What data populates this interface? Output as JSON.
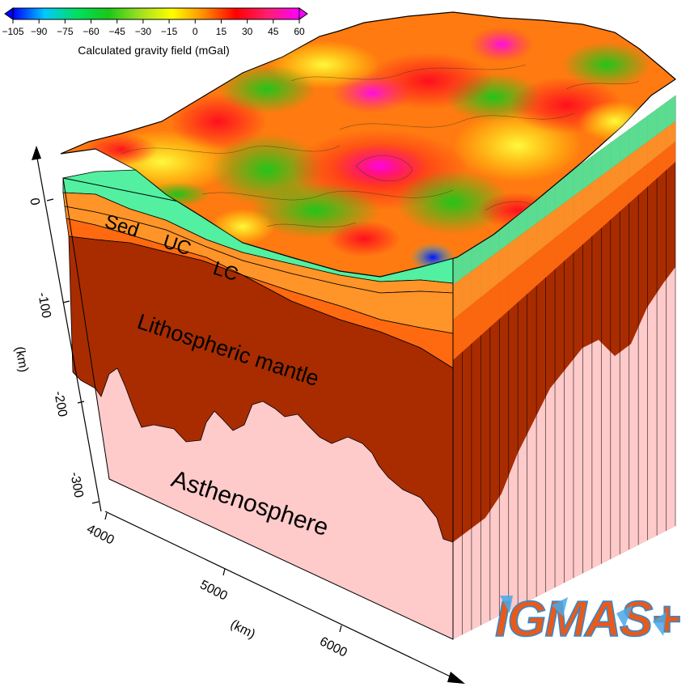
{
  "colorbar": {
    "title": "Calculated gravity field (mGal)",
    "ticks": [
      "−105",
      "−90",
      "−75",
      "−60",
      "−45",
      "−30",
      "−15",
      "0",
      "15",
      "30",
      "45",
      "60"
    ],
    "range": [
      -105,
      60
    ],
    "colors": [
      "#0000ff",
      "#00c8ff",
      "#00e060",
      "#18c818",
      "#a0e020",
      "#ffff00",
      "#ff8c00",
      "#ff0000",
      "#ff1f6e",
      "#ff00ff"
    ]
  },
  "layers": [
    {
      "label": "Sed",
      "color": "#52f0a0"
    },
    {
      "label": "UC",
      "color": "#ff9428"
    },
    {
      "label": "LC",
      "color": "#ff6a10"
    },
    {
      "label": "Lithospheric mantle",
      "color": "#a82c00"
    },
    {
      "label": "Asthenosphere",
      "color": "#ffcaca"
    }
  ],
  "depth_axis": {
    "ticks": [
      "0",
      "-100",
      "-200",
      "-300"
    ],
    "unit": "(km)"
  },
  "horizontal_axis": {
    "ticks": [
      "4000",
      "5000",
      "6000"
    ],
    "unit": "(km)"
  },
  "logo": {
    "text": "IGMAS+"
  }
}
